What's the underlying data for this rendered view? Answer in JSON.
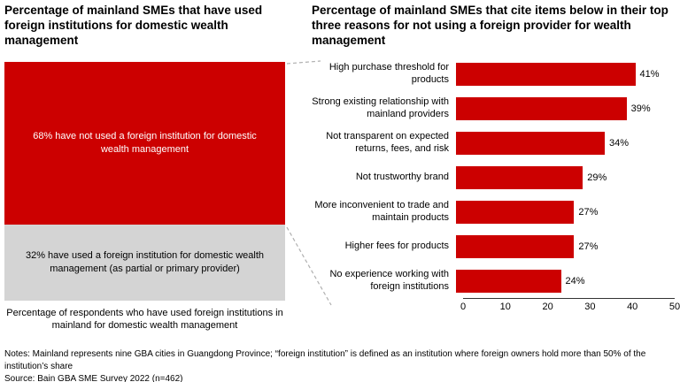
{
  "left_panel": {
    "title": "Percentage of mainland SMEs that have used foreign institutions for domestic wealth management",
    "caption": "Percentage of respondents who have used foreign institutions in mainland for domestic wealth management"
  },
  "right_panel": {
    "title": "Percentage of mainland SMEs that cite items below in their top three reasons for not using a foreign provider for wealth management"
  },
  "colors": {
    "bar_red": "#cc0000",
    "stack_gray": "#d4d4d4",
    "connector_gray": "#b0b0b0"
  },
  "chart_data": [
    {
      "type": "bar",
      "subtype": "stacked-vertical-100pct",
      "title": "Percentage of mainland SMEs that have used foreign institutions for domestic wealth management",
      "segments": [
        {
          "label": "68% have not used a foreign institution for domestic wealth management",
          "value": 68,
          "color": "#cc0000",
          "text_color": "#ffffff"
        },
        {
          "label": "32% have used a foreign institution for domestic wealth management (as partial or primary provider)",
          "value": 32,
          "color": "#d4d4d4",
          "text_color": "#000000"
        }
      ],
      "caption": "Percentage of respondents who have used foreign institutions in mainland for domestic wealth management"
    },
    {
      "type": "bar",
      "orientation": "horizontal",
      "title": "Percentage of mainland SMEs that cite items below in their top three reasons for not using a foreign provider for wealth management",
      "categories": [
        "High purchase threshold for products",
        "Strong existing relationship with mainland providers",
        "Not transparent on expected returns, fees, and risk",
        "Not trustworthy brand",
        "More inconvenient to trade and maintain products",
        "Higher fees for products",
        "No experience working with foreign institutions"
      ],
      "values": [
        41,
        39,
        34,
        29,
        27,
        27,
        24
      ],
      "value_labels": [
        "41%",
        "39%",
        "34%",
        "29%",
        "27%",
        "27%",
        "24%"
      ],
      "xlim": [
        0,
        50
      ],
      "x_ticks": [
        0,
        10,
        20,
        30,
        40,
        50
      ],
      "grid": false,
      "legend": "none"
    }
  ],
  "footer": {
    "notes": "Notes: Mainland represents nine GBA cities in Guangdong Province; “foreign institution” is defined as an institution where foreign owners hold more than 50% of the institution’s share",
    "source": "Source: Bain GBA SME Survey 2022 (n=462)"
  }
}
